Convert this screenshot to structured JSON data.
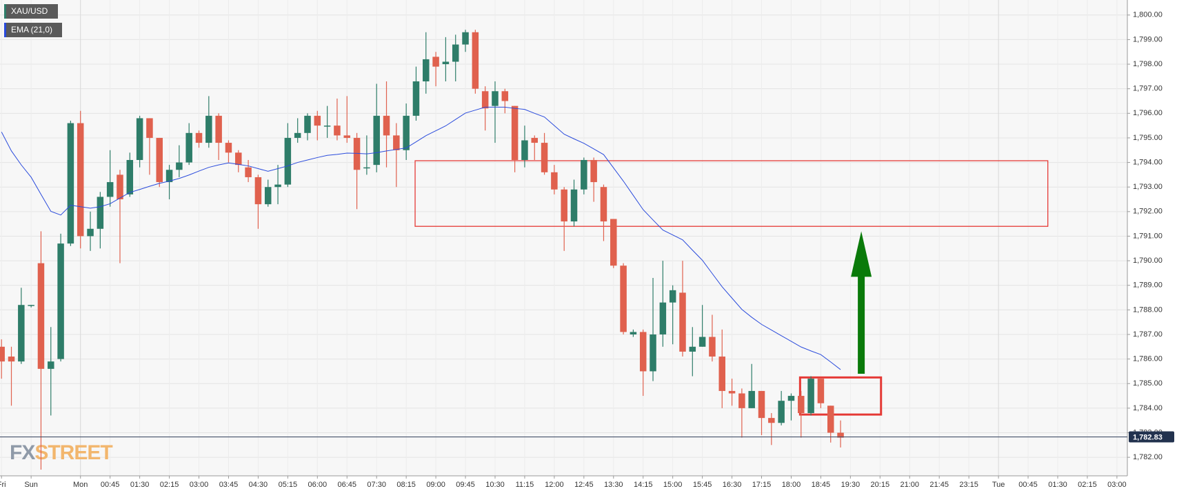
{
  "chart_data": {
    "type": "candlestick",
    "series": [
      {
        "name": "XAU/USD",
        "up_color": "#2e7d69",
        "down_color": "#e0614e",
        "open": [
          1786.5,
          1786.1,
          1785.9,
          1788.2,
          1789.9,
          1785.6,
          1786.0,
          1790.7,
          1795.6,
          1791.0,
          1791.3,
          1792.6,
          1793.5,
          1792.7,
          1794.1,
          1795.8,
          1795.0,
          1793.2,
          1793.7,
          1794.0,
          1795.2,
          1794.8,
          1795.9,
          1794.8,
          1794.4,
          1793.8,
          1793.4,
          1792.3,
          1793.0,
          1793.1,
          1795.0,
          1795.2,
          1795.9,
          1795.5,
          1795.5,
          1795.1,
          1795.0,
          1793.8,
          1793.9,
          1795.9,
          1795.1,
          1794.5,
          1795.9,
          1797.3,
          1798.3,
          1798.0,
          1798.1,
          1798.8,
          1799.3,
          1796.9,
          1796.3,
          1796.9,
          1796.3,
          1794.1,
          1795.0,
          1794.8,
          1793.6,
          1792.9,
          1791.6,
          1792.9,
          1794.1,
          1793.0,
          1791.7,
          1789.8,
          1787.0,
          1787.1,
          1785.5,
          1787.0,
          1788.3,
          1788.7,
          1786.3,
          1786.5,
          1786.9,
          1786.1,
          1784.7,
          1784.6,
          1784.0,
          1784.7,
          1783.6,
          1783.4,
          1784.3,
          1784.5,
          1783.8,
          1785.2,
          1784.1,
          1783.0
        ],
        "high": [
          1786.8,
          1786.5,
          1788.9,
          1788.2,
          1791.2,
          1787.3,
          1791.1,
          1795.7,
          1796.1,
          1792.0,
          1792.8,
          1794.5,
          1793.7,
          1794.4,
          1795.9,
          1795.8,
          1795.0,
          1793.9,
          1794.7,
          1795.6,
          1795.3,
          1796.7,
          1796.0,
          1794.9,
          1794.5,
          1794.1,
          1793.5,
          1793.3,
          1793.9,
          1795.6,
          1795.8,
          1796.0,
          1796.1,
          1796.3,
          1796.6,
          1796.7,
          1795.2,
          1795.1,
          1797.2,
          1797.3,
          1795.6,
          1796.4,
          1797.9,
          1799.3,
          1798.5,
          1799.1,
          1799.2,
          1799.4,
          1799.4,
          1797.1,
          1797.3,
          1797.0,
          1796.3,
          1795.5,
          1795.1,
          1795.2,
          1793.9,
          1793.0,
          1793.3,
          1794.2,
          1794.2,
          1793.1,
          1791.7,
          1789.9,
          1787.2,
          1787.2,
          1789.3,
          1790.0,
          1789.0,
          1790.0,
          1787.3,
          1788.2,
          1787.8,
          1787.2,
          1785.2,
          1784.8,
          1785.8,
          1784.7,
          1783.8,
          1784.7,
          1784.6,
          1784.7,
          1785.3,
          1785.2,
          1784.1,
          1783.5
        ],
        "low": [
          1785.2,
          1784.1,
          1785.8,
          1788.1,
          1781.5,
          1783.7,
          1785.9,
          1790.6,
          1790.5,
          1790.4,
          1790.5,
          1792.2,
          1789.9,
          1792.6,
          1793.8,
          1793.5,
          1793.0,
          1792.5,
          1793.4,
          1793.9,
          1794.6,
          1794.6,
          1794.1,
          1794.0,
          1793.6,
          1793.2,
          1791.3,
          1792.2,
          1792.3,
          1793.0,
          1794.8,
          1794.9,
          1794.9,
          1795.0,
          1794.9,
          1794.8,
          1792.1,
          1793.5,
          1793.6,
          1793.8,
          1793.0,
          1794.1,
          1795.7,
          1796.8,
          1797.1,
          1797.3,
          1797.3,
          1798.5,
          1796.8,
          1795.3,
          1794.8,
          1796.0,
          1793.6,
          1793.8,
          1794.1,
          1793.5,
          1792.7,
          1790.4,
          1791.4,
          1792.7,
          1792.4,
          1790.8,
          1789.7,
          1787.0,
          1786.9,
          1784.5,
          1785.1,
          1786.5,
          1786.6,
          1786.1,
          1785.3,
          1786.5,
          1785.9,
          1784.0,
          1784.1,
          1782.8,
          1784.0,
          1782.9,
          1782.5,
          1783.3,
          1783.5,
          1782.8,
          1783.7,
          1784.0,
          1782.6,
          1782.4
        ],
        "close": [
          1785.9,
          1785.9,
          1788.2,
          1788.2,
          1785.6,
          1785.9,
          1790.7,
          1795.6,
          1791.0,
          1791.3,
          1792.6,
          1793.2,
          1792.5,
          1794.1,
          1795.8,
          1795.0,
          1793.2,
          1793.7,
          1794.0,
          1795.2,
          1794.8,
          1795.9,
          1794.8,
          1794.4,
          1793.9,
          1793.4,
          1792.3,
          1793.0,
          1793.1,
          1795.0,
          1795.2,
          1795.9,
          1795.5,
          1795.5,
          1795.1,
          1795.0,
          1793.7,
          1793.8,
          1795.9,
          1795.1,
          1794.5,
          1795.9,
          1797.3,
          1798.2,
          1797.9,
          1798.1,
          1798.8,
          1799.3,
          1797.0,
          1796.2,
          1796.9,
          1796.5,
          1794.1,
          1794.9,
          1794.8,
          1793.6,
          1792.9,
          1791.6,
          1792.9,
          1794.1,
          1793.2,
          1791.6,
          1789.8,
          1787.1,
          1787.1,
          1785.5,
          1787.0,
          1788.3,
          1788.8,
          1786.3,
          1786.5,
          1786.9,
          1786.1,
          1784.7,
          1784.6,
          1784.0,
          1784.7,
          1783.6,
          1783.4,
          1784.3,
          1784.5,
          1783.8,
          1785.2,
          1784.2,
          1783.0,
          1782.8
        ]
      },
      {
        "name": "EMA (21,0)",
        "color": "#2a4bdc",
        "values": [
          1795.24,
          1794.47,
          1793.9,
          1793.4,
          1792.7,
          1792.01,
          1791.86,
          1792.26,
          1792.2,
          1792.14,
          1792.2,
          1792.32,
          1792.55,
          1792.78,
          1792.9,
          1793.03,
          1793.15,
          1793.24,
          1793.35,
          1793.49,
          1793.65,
          1793.8,
          1793.9,
          1793.98,
          1793.92,
          1793.86,
          1793.75,
          1793.64,
          1793.75,
          1793.86,
          1794.0,
          1794.1,
          1794.2,
          1794.29,
          1794.33,
          1794.38,
          1794.37,
          1794.35,
          1794.4,
          1794.47,
          1794.53,
          1794.59,
          1794.84,
          1795.09,
          1795.29,
          1795.49,
          1795.75,
          1796.01,
          1796.13,
          1796.25,
          1796.25,
          1796.25,
          1796.2,
          1796.16,
          1796.0,
          1795.85,
          1795.5,
          1795.15,
          1794.96,
          1794.78,
          1794.55,
          1794.32,
          1793.78,
          1793.24,
          1792.66,
          1792.08,
          1791.66,
          1791.25,
          1791.05,
          1790.85,
          1790.43,
          1790.02,
          1789.48,
          1788.94,
          1788.48,
          1788.02,
          1787.7,
          1787.41,
          1787.18,
          1786.95,
          1786.72,
          1786.49,
          1786.33,
          1786.18,
          1785.88,
          1785.57
        ]
      }
    ],
    "ylim": [
      1781.33,
      1800.55
    ],
    "yticks": [
      {
        "value": 1782,
        "label": "1,782.00"
      },
      {
        "value": 1783,
        "label": "1,783.00"
      },
      {
        "value": 1784,
        "label": "1,784.00"
      },
      {
        "value": 1785,
        "label": "1,785.00"
      },
      {
        "value": 1786,
        "label": "1,786.00"
      },
      {
        "value": 1787,
        "label": "1,787.00"
      },
      {
        "value": 1788,
        "label": "1,788.00"
      },
      {
        "value": 1789,
        "label": "1,789.00"
      },
      {
        "value": 1790,
        "label": "1,790.00"
      },
      {
        "value": 1791,
        "label": "1,791.00"
      },
      {
        "value": 1792,
        "label": "1,792.00"
      },
      {
        "value": 1793,
        "label": "1,793.00"
      },
      {
        "value": 1794,
        "label": "1,794.00"
      },
      {
        "value": 1795,
        "label": "1,795.00"
      },
      {
        "value": 1796,
        "label": "1,796.00"
      },
      {
        "value": 1797,
        "label": "1,797.00"
      },
      {
        "value": 1798,
        "label": "1,798.00"
      },
      {
        "value": 1799,
        "label": "1,799.00"
      },
      {
        "value": 1800,
        "label": "1,800.00"
      }
    ],
    "xlim": [
      0,
      114
    ],
    "xticks": [
      {
        "value": 0,
        "label": "Fri"
      },
      {
        "value": 3,
        "label": "Sun"
      },
      {
        "value": 8,
        "label": "Mon"
      },
      {
        "value": 11,
        "label": "00:45"
      },
      {
        "value": 14,
        "label": "01:30"
      },
      {
        "value": 17,
        "label": "02:15"
      },
      {
        "value": 20,
        "label": "03:00"
      },
      {
        "value": 23,
        "label": "03:45"
      },
      {
        "value": 26,
        "label": "04:30"
      },
      {
        "value": 29,
        "label": "05:15"
      },
      {
        "value": 32,
        "label": "06:00"
      },
      {
        "value": 35,
        "label": "06:45"
      },
      {
        "value": 38,
        "label": "07:30"
      },
      {
        "value": 41,
        "label": "08:15"
      },
      {
        "value": 44,
        "label": "09:00"
      },
      {
        "value": 47,
        "label": "09:45"
      },
      {
        "value": 50,
        "label": "10:30"
      },
      {
        "value": 53,
        "label": "11:15"
      },
      {
        "value": 56,
        "label": "12:00"
      },
      {
        "value": 59,
        "label": "12:45"
      },
      {
        "value": 62,
        "label": "13:30"
      },
      {
        "value": 65,
        "label": "14:15"
      },
      {
        "value": 68,
        "label": "15:00"
      },
      {
        "value": 71,
        "label": "15:45"
      },
      {
        "value": 74,
        "label": "16:30"
      },
      {
        "value": 77,
        "label": "17:15"
      },
      {
        "value": 80,
        "label": "18:00"
      },
      {
        "value": 83,
        "label": "18:45"
      },
      {
        "value": 86,
        "label": "19:30"
      },
      {
        "value": 89,
        "label": "20:15"
      },
      {
        "value": 92,
        "label": "21:00"
      },
      {
        "value": 95,
        "label": "21:45"
      },
      {
        "value": 98,
        "label": "23:15"
      },
      {
        "value": 101,
        "label": "Tue"
      },
      {
        "value": 104,
        "label": "00:45"
      },
      {
        "value": 107,
        "label": "01:30"
      },
      {
        "value": 110,
        "label": "02:15"
      },
      {
        "value": 113,
        "label": "03:00"
      }
    ],
    "last_price": {
      "value": 1782.83,
      "label": "1,782.83"
    },
    "zones": [
      {
        "x": [
          41.9,
          106
        ],
        "y": [
          1791.4,
          1794.07
        ],
        "color": "#e53935"
      },
      {
        "x": [
          80.9,
          89.1
        ],
        "y": [
          1783.74,
          1785.25
        ],
        "color": "#e53935"
      }
    ],
    "arrow": {
      "x": 87.1,
      "y": [
        1785.4,
        1791.2
      ],
      "color": "#0a7a0a"
    },
    "watermark": [
      "FX",
      "STREET"
    ],
    "grid": true
  }
}
